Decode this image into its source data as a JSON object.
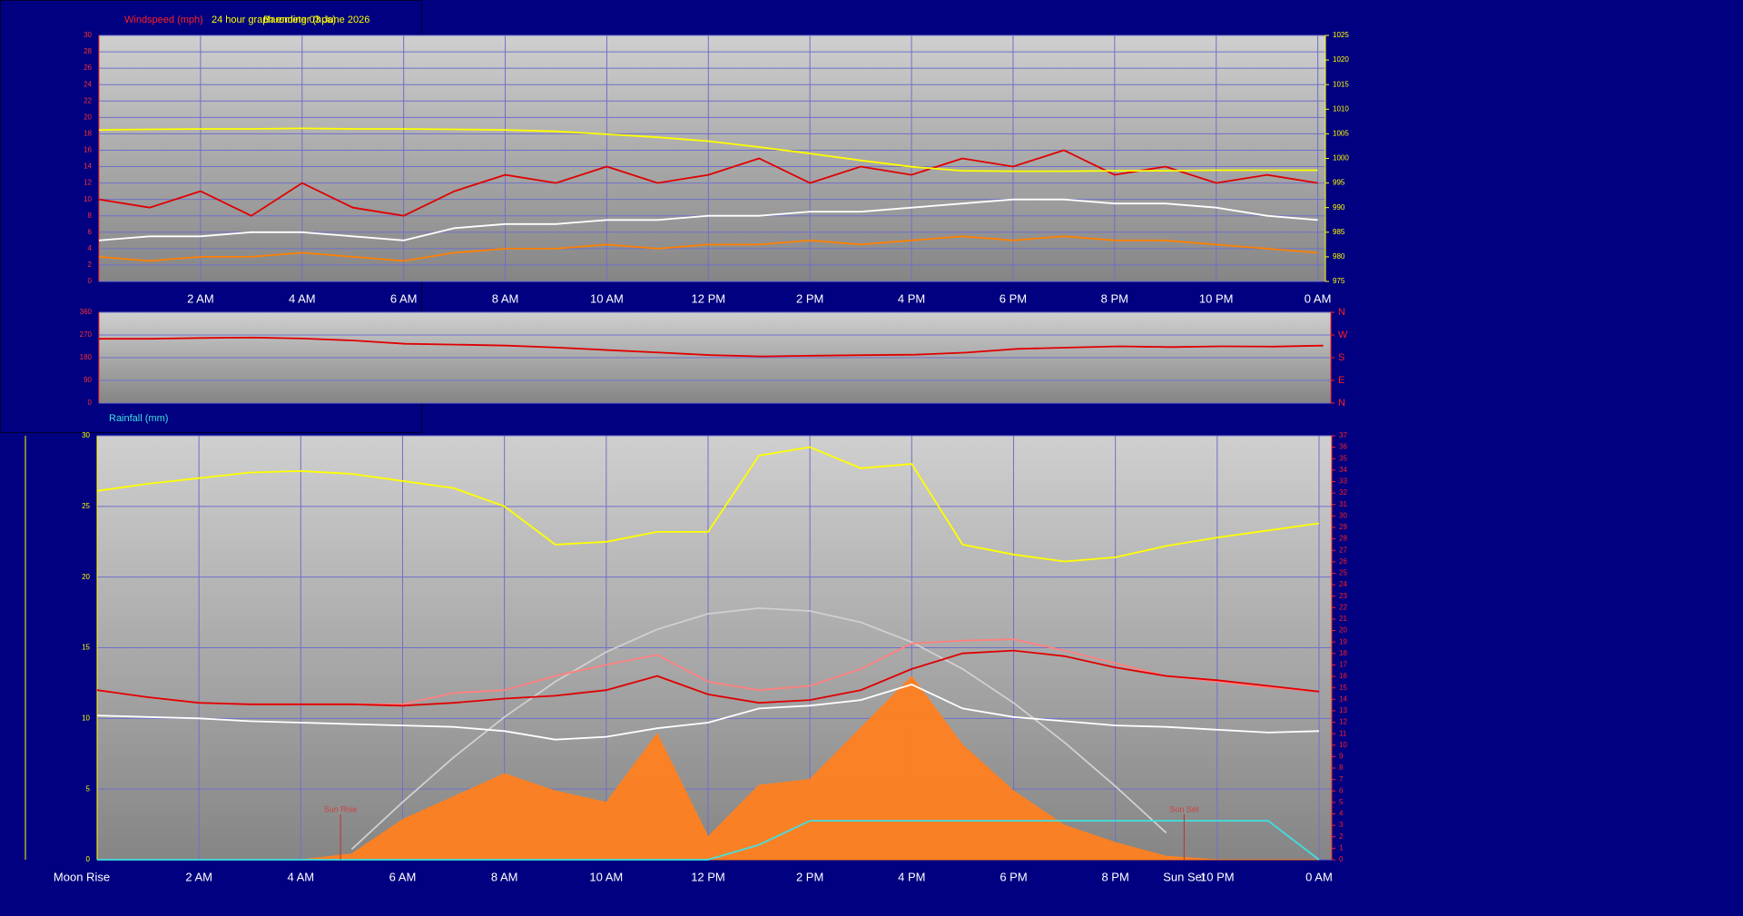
{
  "chart_data": [
    {
      "type": "line",
      "title": "24 hour graph ending 03 June 2026",
      "x": [
        0,
        1,
        2,
        3,
        4,
        5,
        6,
        7,
        8,
        9,
        10,
        11,
        12,
        13,
        14,
        15,
        16,
        17,
        18,
        19,
        20,
        21,
        22,
        23,
        24
      ],
      "xlim": [
        0,
        24.15
      ],
      "xticks": [
        {
          "value": 2,
          "label": "2 AM"
        },
        {
          "value": 4,
          "label": "4 AM"
        },
        {
          "value": 6,
          "label": "6 AM"
        },
        {
          "value": 8,
          "label": "8 AM"
        },
        {
          "value": 10,
          "label": "10 AM"
        },
        {
          "value": 12,
          "label": "12 PM"
        },
        {
          "value": 14,
          "label": "2 PM"
        },
        {
          "value": 16,
          "label": "4 PM"
        },
        {
          "value": 18,
          "label": "6 PM"
        },
        {
          "value": 20,
          "label": "8 PM"
        },
        {
          "value": 22,
          "label": "10 PM"
        },
        {
          "value": 24,
          "label": "0 AM"
        }
      ],
      "ylim": [
        0,
        30
      ],
      "yticks": [
        0,
        2,
        4,
        6,
        8,
        10,
        12,
        14,
        16,
        18,
        20,
        22,
        24,
        26,
        28,
        30
      ],
      "y2lim": [
        975,
        1025
      ],
      "y2ticks": [
        975,
        980,
        985,
        990,
        995,
        1000,
        1005,
        1010,
        1015,
        1020,
        1025
      ],
      "grid": true,
      "series": [
        {
          "name": "Windspeed (mph)",
          "color": "#e00000",
          "values": [
            10,
            9,
            11,
            8,
            12,
            9,
            8,
            11,
            13,
            12,
            14,
            12,
            13,
            15,
            12,
            14,
            13,
            15,
            14,
            16,
            13,
            14,
            12,
            13,
            12
          ]
        },
        {
          "color": "#ffffff",
          "values": [
            5,
            5.5,
            5.5,
            6,
            6,
            5.5,
            5,
            6.5,
            7,
            7,
            7.5,
            7.5,
            8,
            8,
            8.5,
            8.5,
            9,
            9.5,
            10,
            10,
            9.5,
            9.5,
            9,
            8,
            7.5
          ]
        },
        {
          "color": "#ff8000",
          "values": [
            3,
            2.5,
            3,
            3,
            3.5,
            3,
            2.5,
            3.5,
            4,
            4,
            4.5,
            4,
            4.5,
            4.5,
            5,
            4.5,
            5,
            5.5,
            5,
            5.5,
            5,
            5,
            4.5,
            4,
            3.5
          ]
        },
        {
          "name": "Barometer (hpa)",
          "color": "#ffff00",
          "axis": "y2",
          "values": [
            1005.8,
            1005.9,
            1006,
            1006,
            1006.1,
            1006,
            1006,
            1005.9,
            1005.8,
            1005.5,
            1004.9,
            1004.3,
            1003.5,
            1002.3,
            1001,
            999.6,
            998.3,
            997.5,
            997.4,
            997.4,
            997.5,
            997.5,
            997.6,
            997.6,
            997.6
          ]
        }
      ]
    },
    {
      "type": "line",
      "x": [
        0,
        1,
        2,
        3,
        4,
        5,
        6,
        7,
        8,
        9,
        10,
        11,
        12,
        13,
        14,
        15,
        16,
        17,
        18,
        19,
        20,
        21,
        22,
        23,
        24
      ],
      "xlim": [
        0,
        24.15
      ],
      "ylim": [
        0,
        360
      ],
      "yticks": [
        0,
        90,
        180,
        270,
        360
      ],
      "y2lim": [
        0,
        360
      ],
      "y2ticks": [
        {
          "value": 0,
          "label": "N"
        },
        {
          "value": 90,
          "label": "E"
        },
        {
          "value": 180,
          "label": "S"
        },
        {
          "value": 270,
          "label": "W"
        },
        {
          "value": 360,
          "label": "N"
        }
      ],
      "grid": true,
      "series": [
        {
          "color": "#e00000",
          "values": [
            255,
            255,
            258,
            260,
            256,
            248,
            235,
            232,
            228,
            220,
            210,
            200,
            190,
            185,
            188,
            190,
            192,
            200,
            215,
            220,
            225,
            222,
            225,
            224,
            228
          ]
        }
      ]
    },
    {
      "type": "line",
      "x": [
        0,
        1,
        2,
        3,
        4,
        5,
        6,
        7,
        8,
        9,
        10,
        11,
        12,
        13,
        14,
        15,
        16,
        17,
        18,
        19,
        20,
        21,
        22,
        23,
        24
      ],
      "xlim": [
        0,
        24.25
      ],
      "xticks": [
        {
          "value": 2,
          "label": "2 AM"
        },
        {
          "value": 4,
          "label": "4 AM"
        },
        {
          "value": 6,
          "label": "6 AM"
        },
        {
          "value": 8,
          "label": "8 AM"
        },
        {
          "value": 10,
          "label": "10 AM"
        },
        {
          "value": 12,
          "label": "12 PM"
        },
        {
          "value": 14,
          "label": "2 PM"
        },
        {
          "value": 16,
          "label": "4 PM"
        },
        {
          "value": 18,
          "label": "6 PM"
        },
        {
          "value": 20,
          "label": "8 PM"
        },
        {
          "value": 22,
          "label": "10 PM"
        },
        {
          "value": 24,
          "label": "0 AM"
        }
      ],
      "ylim": [
        0,
        30
      ],
      "yticks": [
        0,
        5,
        10,
        15,
        20,
        25,
        30
      ],
      "y2lim": [
        0,
        37
      ],
      "y2ticks": [
        0,
        1,
        2,
        3,
        4,
        5,
        6,
        7,
        8,
        9,
        10,
        11,
        12,
        13,
        14,
        15,
        16,
        17,
        18,
        19,
        20,
        21,
        22,
        23,
        24,
        25,
        26,
        27,
        28,
        29,
        30,
        31,
        32,
        33,
        34,
        35,
        36,
        37
      ],
      "grid": true,
      "series": [
        {
          "color": "#ff8020",
          "axis": "y2",
          "style": "area",
          "values": [
            0,
            0,
            0,
            0,
            0,
            0.5,
            3.5,
            5.5,
            7.5,
            6,
            5,
            11,
            2,
            6.5,
            7,
            11.5,
            16,
            10,
            6,
            3,
            1.5,
            0.3,
            0,
            0,
            0
          ]
        },
        {
          "color": "#d0d0d0",
          "values": [
            null,
            null,
            null,
            null,
            null,
            0.74,
            4.07,
            7.24,
            10.1,
            12.6,
            14.7,
            16.3,
            17.4,
            17.8,
            17.6,
            16.8,
            15.4,
            13.5,
            11.1,
            8.3,
            5.2,
            1.9,
            null,
            null,
            null
          ]
        },
        {
          "color": "#ffff00",
          "values": [
            26.1,
            26.6,
            27,
            27.4,
            27.5,
            27.3,
            26.8,
            26.3,
            25,
            22.3,
            22.5,
            23.2,
            23.2,
            28.6,
            29.2,
            27.7,
            28,
            22.3,
            21.6,
            21.1,
            21.4,
            22.2,
            22.8,
            23.3,
            23.8
          ]
        },
        {
          "color": "#ff8080",
          "values": [
            12,
            11.5,
            11.1,
            11,
            11,
            11,
            11,
            11.8,
            12,
            13,
            13.8,
            14.5,
            12.6,
            12,
            12.3,
            13.5,
            15.3,
            15.5,
            15.6,
            14.8,
            13.9,
            13,
            12.6,
            12.2,
            11.9
          ]
        },
        {
          "color": "#e00000",
          "values": [
            12,
            11.5,
            11.1,
            11,
            11,
            11,
            10.9,
            11.1,
            11.4,
            11.6,
            12,
            13,
            11.7,
            11.1,
            11.3,
            12,
            13.5,
            14.6,
            14.8,
            14.4,
            13.6,
            13,
            12.7,
            12.3,
            11.9
          ]
        },
        {
          "color": "#ffffff",
          "values": [
            10.2,
            10.1,
            10,
            9.8,
            9.7,
            9.6,
            9.5,
            9.4,
            9.1,
            8.5,
            8.7,
            9.3,
            9.7,
            10.7,
            10.9,
            11.3,
            12.4,
            10.7,
            10.1,
            9.8,
            9.5,
            9.4,
            9.2,
            9,
            9.1
          ]
        },
        {
          "name": "Rainfall (mm)",
          "color": "#40e0e0",
          "axis": "y2",
          "values": [
            0,
            0,
            0,
            0,
            0,
            0,
            0,
            0,
            0,
            0,
            0,
            0,
            0,
            1.3,
            3.4,
            3.4,
            3.4,
            3.4,
            3.4,
            3.4,
            3.4,
            3.4,
            3.4,
            3.4,
            0
          ]
        }
      ],
      "annotations": [
        {
          "text": "Sun Rise",
          "x": 4.78
        },
        {
          "text": "Sun Set",
          "x": 21.35
        }
      ],
      "x_events": [
        {
          "text": "Moon Rise",
          "x": 0
        },
        {
          "text": "Sun Set",
          "x": 21.35
        }
      ]
    }
  ]
}
